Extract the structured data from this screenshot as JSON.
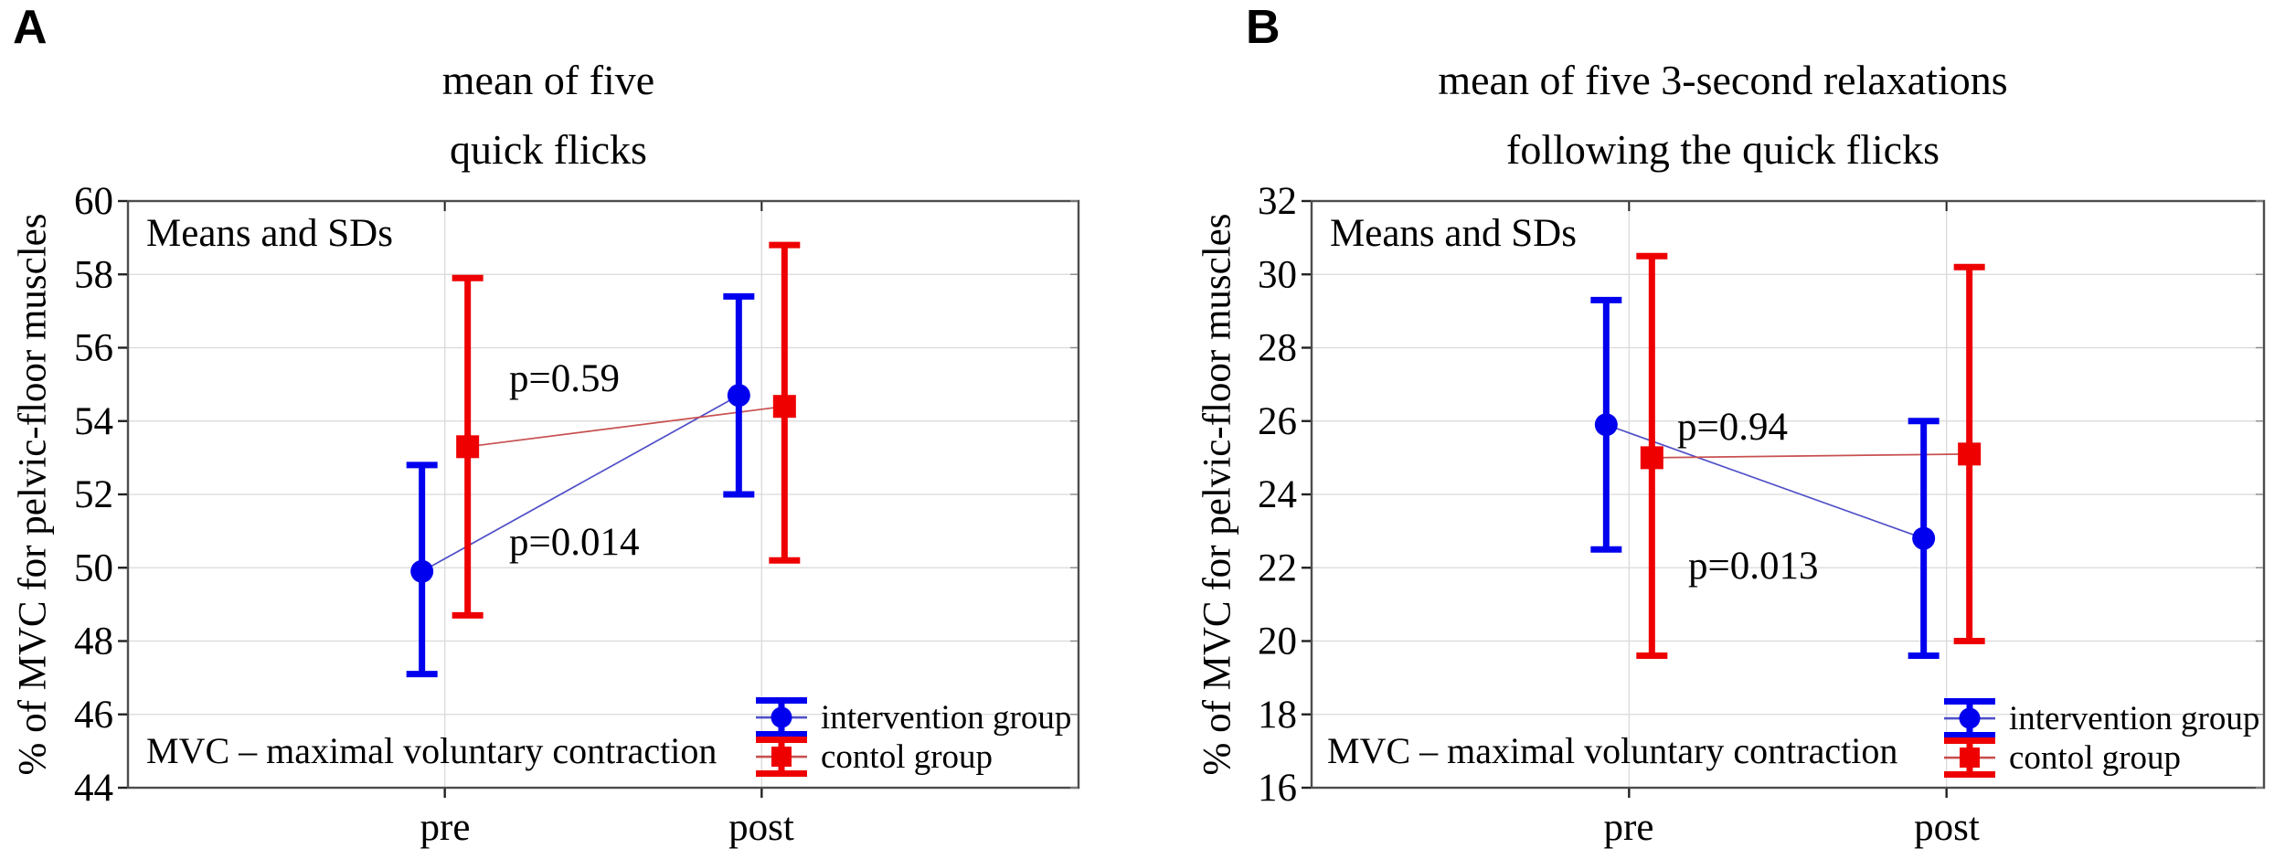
{
  "figure": {
    "background": "#ffffff"
  },
  "colors": {
    "intervention": "#0000EE",
    "control": "#EE0000",
    "intervention_line": "#5050C8",
    "control_line": "#C85050",
    "gridline": "#d9d9d9",
    "plot_border": "#4d4d4d"
  },
  "panels": [
    {
      "label": "A",
      "title_lines": [
        "mean of five",
        "quick flicks"
      ],
      "inner_note": "Means and SDs",
      "footnote": "MVC – maximal voluntary contraction",
      "ylabel": "% of MVC for pelvic-floor muscles",
      "chart_data": {
        "type": "scatter",
        "title": "mean of five quick flicks",
        "categories": [
          "pre",
          "post"
        ],
        "ylabel": "% of MVC for pelvic-floor muscles",
        "ylim": [
          44,
          60
        ],
        "ytick_step": 2,
        "grid": true,
        "legend_position": "bottom-right",
        "series": [
          {
            "name": "intervention group",
            "marker": "circle",
            "color": "#0000EE",
            "line_color": "#5050C8",
            "means": [
              49.9,
              54.7
            ],
            "sd_low": [
              47.1,
              52.0
            ],
            "sd_high": [
              52.8,
              57.4
            ]
          },
          {
            "name": "contol group",
            "marker": "square",
            "color": "#EE0000",
            "line_color": "#C85050",
            "means": [
              53.3,
              54.4
            ],
            "sd_low": [
              48.7,
              50.2
            ],
            "sd_high": [
              57.9,
              58.8
            ]
          }
        ],
        "annotations": [
          {
            "text": "p=0.59"
          },
          {
            "text": "p=0.014"
          }
        ]
      }
    },
    {
      "label": "B",
      "title_lines": [
        "mean of five  3-second relaxations",
        "following the quick flicks"
      ],
      "inner_note": "Means and SDs",
      "footnote": "MVC – maximal voluntary contraction",
      "ylabel": "% of MVC for pelvic-floor muscles",
      "chart_data": {
        "type": "scatter",
        "title": "mean of five 3-second relaxations following the quick flicks",
        "categories": [
          "pre",
          "post"
        ],
        "ylabel": "% of MVC for pelvic-floor muscles",
        "ylim": [
          16,
          32
        ],
        "ytick_step": 2,
        "grid": true,
        "legend_position": "bottom-right",
        "series": [
          {
            "name": "intervention group",
            "marker": "circle",
            "color": "#0000EE",
            "line_color": "#5050C8",
            "means": [
              25.9,
              22.8
            ],
            "sd_low": [
              22.5,
              19.6
            ],
            "sd_high": [
              29.3,
              26.0
            ]
          },
          {
            "name": "contol group",
            "marker": "square",
            "color": "#EE0000",
            "line_color": "#C85050",
            "means": [
              25.0,
              25.1
            ],
            "sd_low": [
              19.6,
              20.0
            ],
            "sd_high": [
              30.5,
              30.2
            ]
          }
        ],
        "annotations": [
          {
            "text": "p=0.94"
          },
          {
            "text": "p=0.013"
          }
        ]
      }
    }
  ]
}
